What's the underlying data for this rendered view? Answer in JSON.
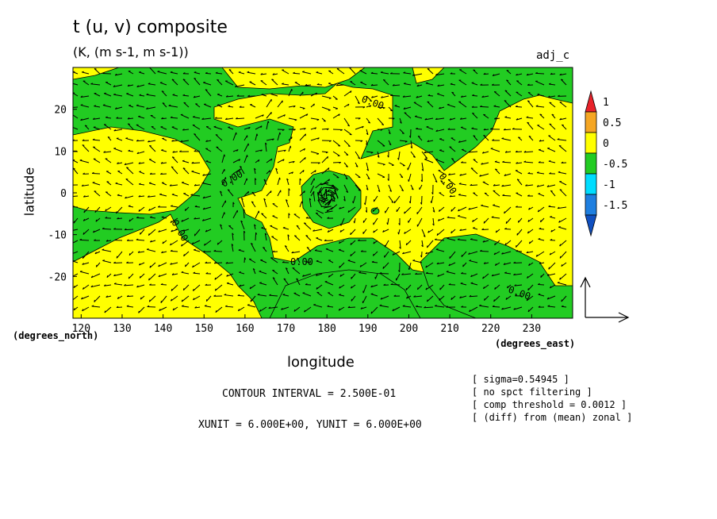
{
  "chart_data": {
    "type": "heatmap",
    "title": "t (u, v) composite",
    "subtitle": "(K, (m s-1, m s-1))",
    "tag": "adj_c",
    "xlabel": "longitude",
    "ylabel": "latitude",
    "x_units_label": "(degrees_east)",
    "y_units_label": "(degrees_north)",
    "xlim": [
      118,
      240
    ],
    "ylim": [
      -30,
      30
    ],
    "x_ticks": [
      "120",
      "130",
      "140",
      "150",
      "160",
      "170",
      "180",
      "190",
      "200",
      "210",
      "220",
      "230"
    ],
    "y_ticks": [
      "20",
      "10",
      "0",
      "-10",
      "-20"
    ],
    "contour_label": "0.00",
    "colorbar": {
      "labels": [
        "1",
        "0.5",
        "0",
        "-0.5",
        "-1",
        "-1.5"
      ],
      "colors": [
        "#e8222a",
        "#f5a623",
        "#ffff00",
        "#22cc22",
        "#00ddff",
        "#1e7fe0",
        "#1050c0"
      ]
    },
    "footer": {
      "contour_interval": "CONTOUR INTERVAL = 2.500E-01",
      "units": "XUNIT = 6.000E+00, YUNIT = 6.000E+00"
    },
    "notes": [
      "[ sigma=0.54945 ]",
      "[ no spct filtering ]",
      "[ comp threshold = 0.0012 ]",
      "[ (diff) from (mean) zonal ]"
    ]
  }
}
